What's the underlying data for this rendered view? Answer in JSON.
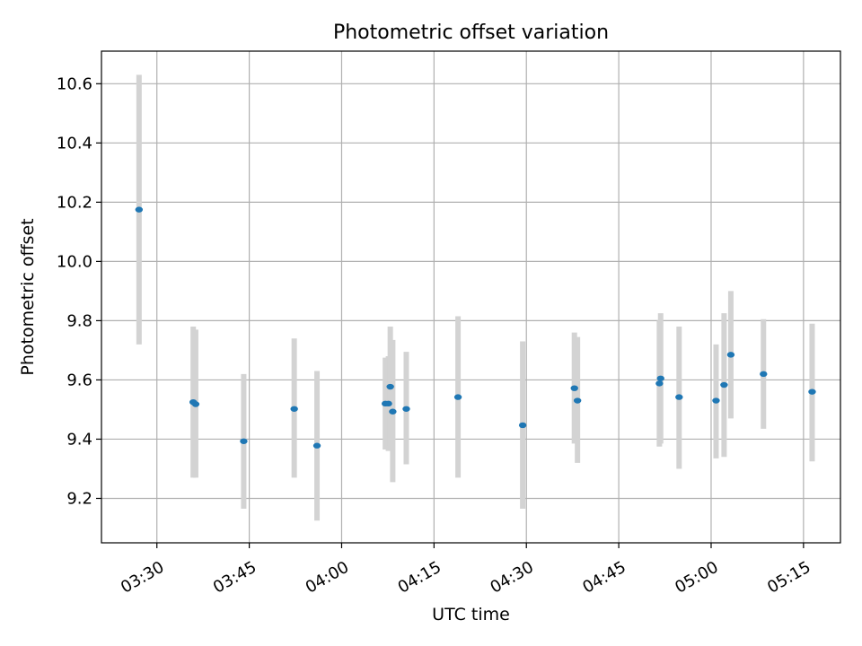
{
  "chart_data": {
    "type": "scatter",
    "title": "Photometric offset variation",
    "xlabel": "UTC time",
    "ylabel": "Photometric offset",
    "grid": true,
    "x_ticks": [
      "03:30",
      "03:45",
      "04:00",
      "04:15",
      "04:30",
      "04:45",
      "05:00",
      "05:15"
    ],
    "x_tick_minutes": [
      210,
      225,
      240,
      255,
      270,
      285,
      300,
      315
    ],
    "xlim": [
      "03:21",
      "05:21"
    ],
    "ylim": [
      9.05,
      10.71
    ],
    "y_ticks": [
      9.2,
      9.4,
      9.6,
      9.8,
      10.0,
      10.2,
      10.4,
      10.6
    ],
    "colors": {
      "points": "#1f77b4",
      "errorbars": "#d3d3d3",
      "grid": "#b0b0b0"
    },
    "points": [
      {
        "x": "03:27.1",
        "y": 10.175,
        "low": 9.72,
        "high": 10.63
      },
      {
        "x": "03:35.9",
        "y": 9.525,
        "low": 9.27,
        "high": 9.78
      },
      {
        "x": "03:36.3",
        "y": 9.518,
        "low": 9.27,
        "high": 9.77
      },
      {
        "x": "03:44.1",
        "y": 9.393,
        "low": 9.165,
        "high": 9.62
      },
      {
        "x": "03:52.3",
        "y": 9.502,
        "low": 9.27,
        "high": 9.74
      },
      {
        "x": "03:56.0",
        "y": 9.378,
        "low": 9.125,
        "high": 9.63
      },
      {
        "x": "04:07.1",
        "y": 9.52,
        "low": 9.365,
        "high": 9.675
      },
      {
        "x": "04:07.6",
        "y": 9.52,
        "low": 9.36,
        "high": 9.68
      },
      {
        "x": "04:07.9",
        "y": 9.577,
        "low": 9.375,
        "high": 9.78
      },
      {
        "x": "04:08.3",
        "y": 9.493,
        "low": 9.255,
        "high": 9.735
      },
      {
        "x": "04:10.5",
        "y": 9.502,
        "low": 9.315,
        "high": 9.695
      },
      {
        "x": "04:18.9",
        "y": 9.542,
        "low": 9.27,
        "high": 9.815
      },
      {
        "x": "04:29.4",
        "y": 9.447,
        "low": 9.165,
        "high": 9.73
      },
      {
        "x": "04:37.8",
        "y": 9.572,
        "low": 9.385,
        "high": 9.76
      },
      {
        "x": "04:38.3",
        "y": 9.53,
        "low": 9.32,
        "high": 9.745
      },
      {
        "x": "04:51.6",
        "y": 9.588,
        "low": 9.375,
        "high": 9.8
      },
      {
        "x": "04:51.8",
        "y": 9.605,
        "low": 9.385,
        "high": 9.825
      },
      {
        "x": "04:54.8",
        "y": 9.542,
        "low": 9.3,
        "high": 9.78
      },
      {
        "x": "05:00.8",
        "y": 9.53,
        "low": 9.335,
        "high": 9.72
      },
      {
        "x": "05:02.1",
        "y": 9.583,
        "low": 9.34,
        "high": 9.825
      },
      {
        "x": "05:03.2",
        "y": 9.685,
        "low": 9.47,
        "high": 9.9
      },
      {
        "x": "05:08.5",
        "y": 9.62,
        "low": 9.435,
        "high": 9.805
      },
      {
        "x": "05:16.4",
        "y": 9.56,
        "low": 9.325,
        "high": 9.79
      }
    ]
  }
}
